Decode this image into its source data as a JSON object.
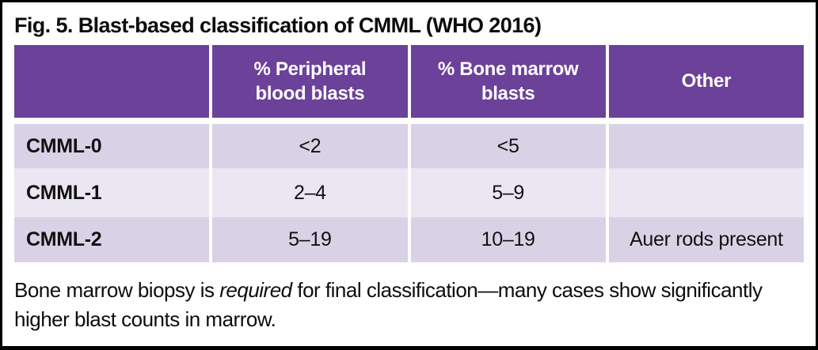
{
  "figure": {
    "title": "Fig. 5. Blast-based classification of CMML (WHO 2016)"
  },
  "table": {
    "columns": [
      "",
      "% Peripheral blood blasts",
      "% Bone marrow blasts",
      "Other"
    ],
    "rows": [
      {
        "label": "CMML-0",
        "peripheral_blood_blasts": "<2",
        "bone_marrow_blasts": "<5",
        "other": ""
      },
      {
        "label": "CMML-1",
        "peripheral_blood_blasts": "2–4",
        "bone_marrow_blasts": "5–9",
        "other": ""
      },
      {
        "label": "CMML-2",
        "peripheral_blood_blasts": "5–19",
        "bone_marrow_blasts": "10–19",
        "other": "Auer rods present"
      }
    ]
  },
  "footnote": {
    "prefix": "Bone marrow biopsy is ",
    "italic_word": "required",
    "suffix": " for final classification—many cases show significantly higher blast counts in marrow."
  },
  "colors": {
    "header_bg": "#6B4199",
    "row_odd": "#D9D2E6",
    "row_even": "#EBE7F2",
    "border": "#000000"
  }
}
